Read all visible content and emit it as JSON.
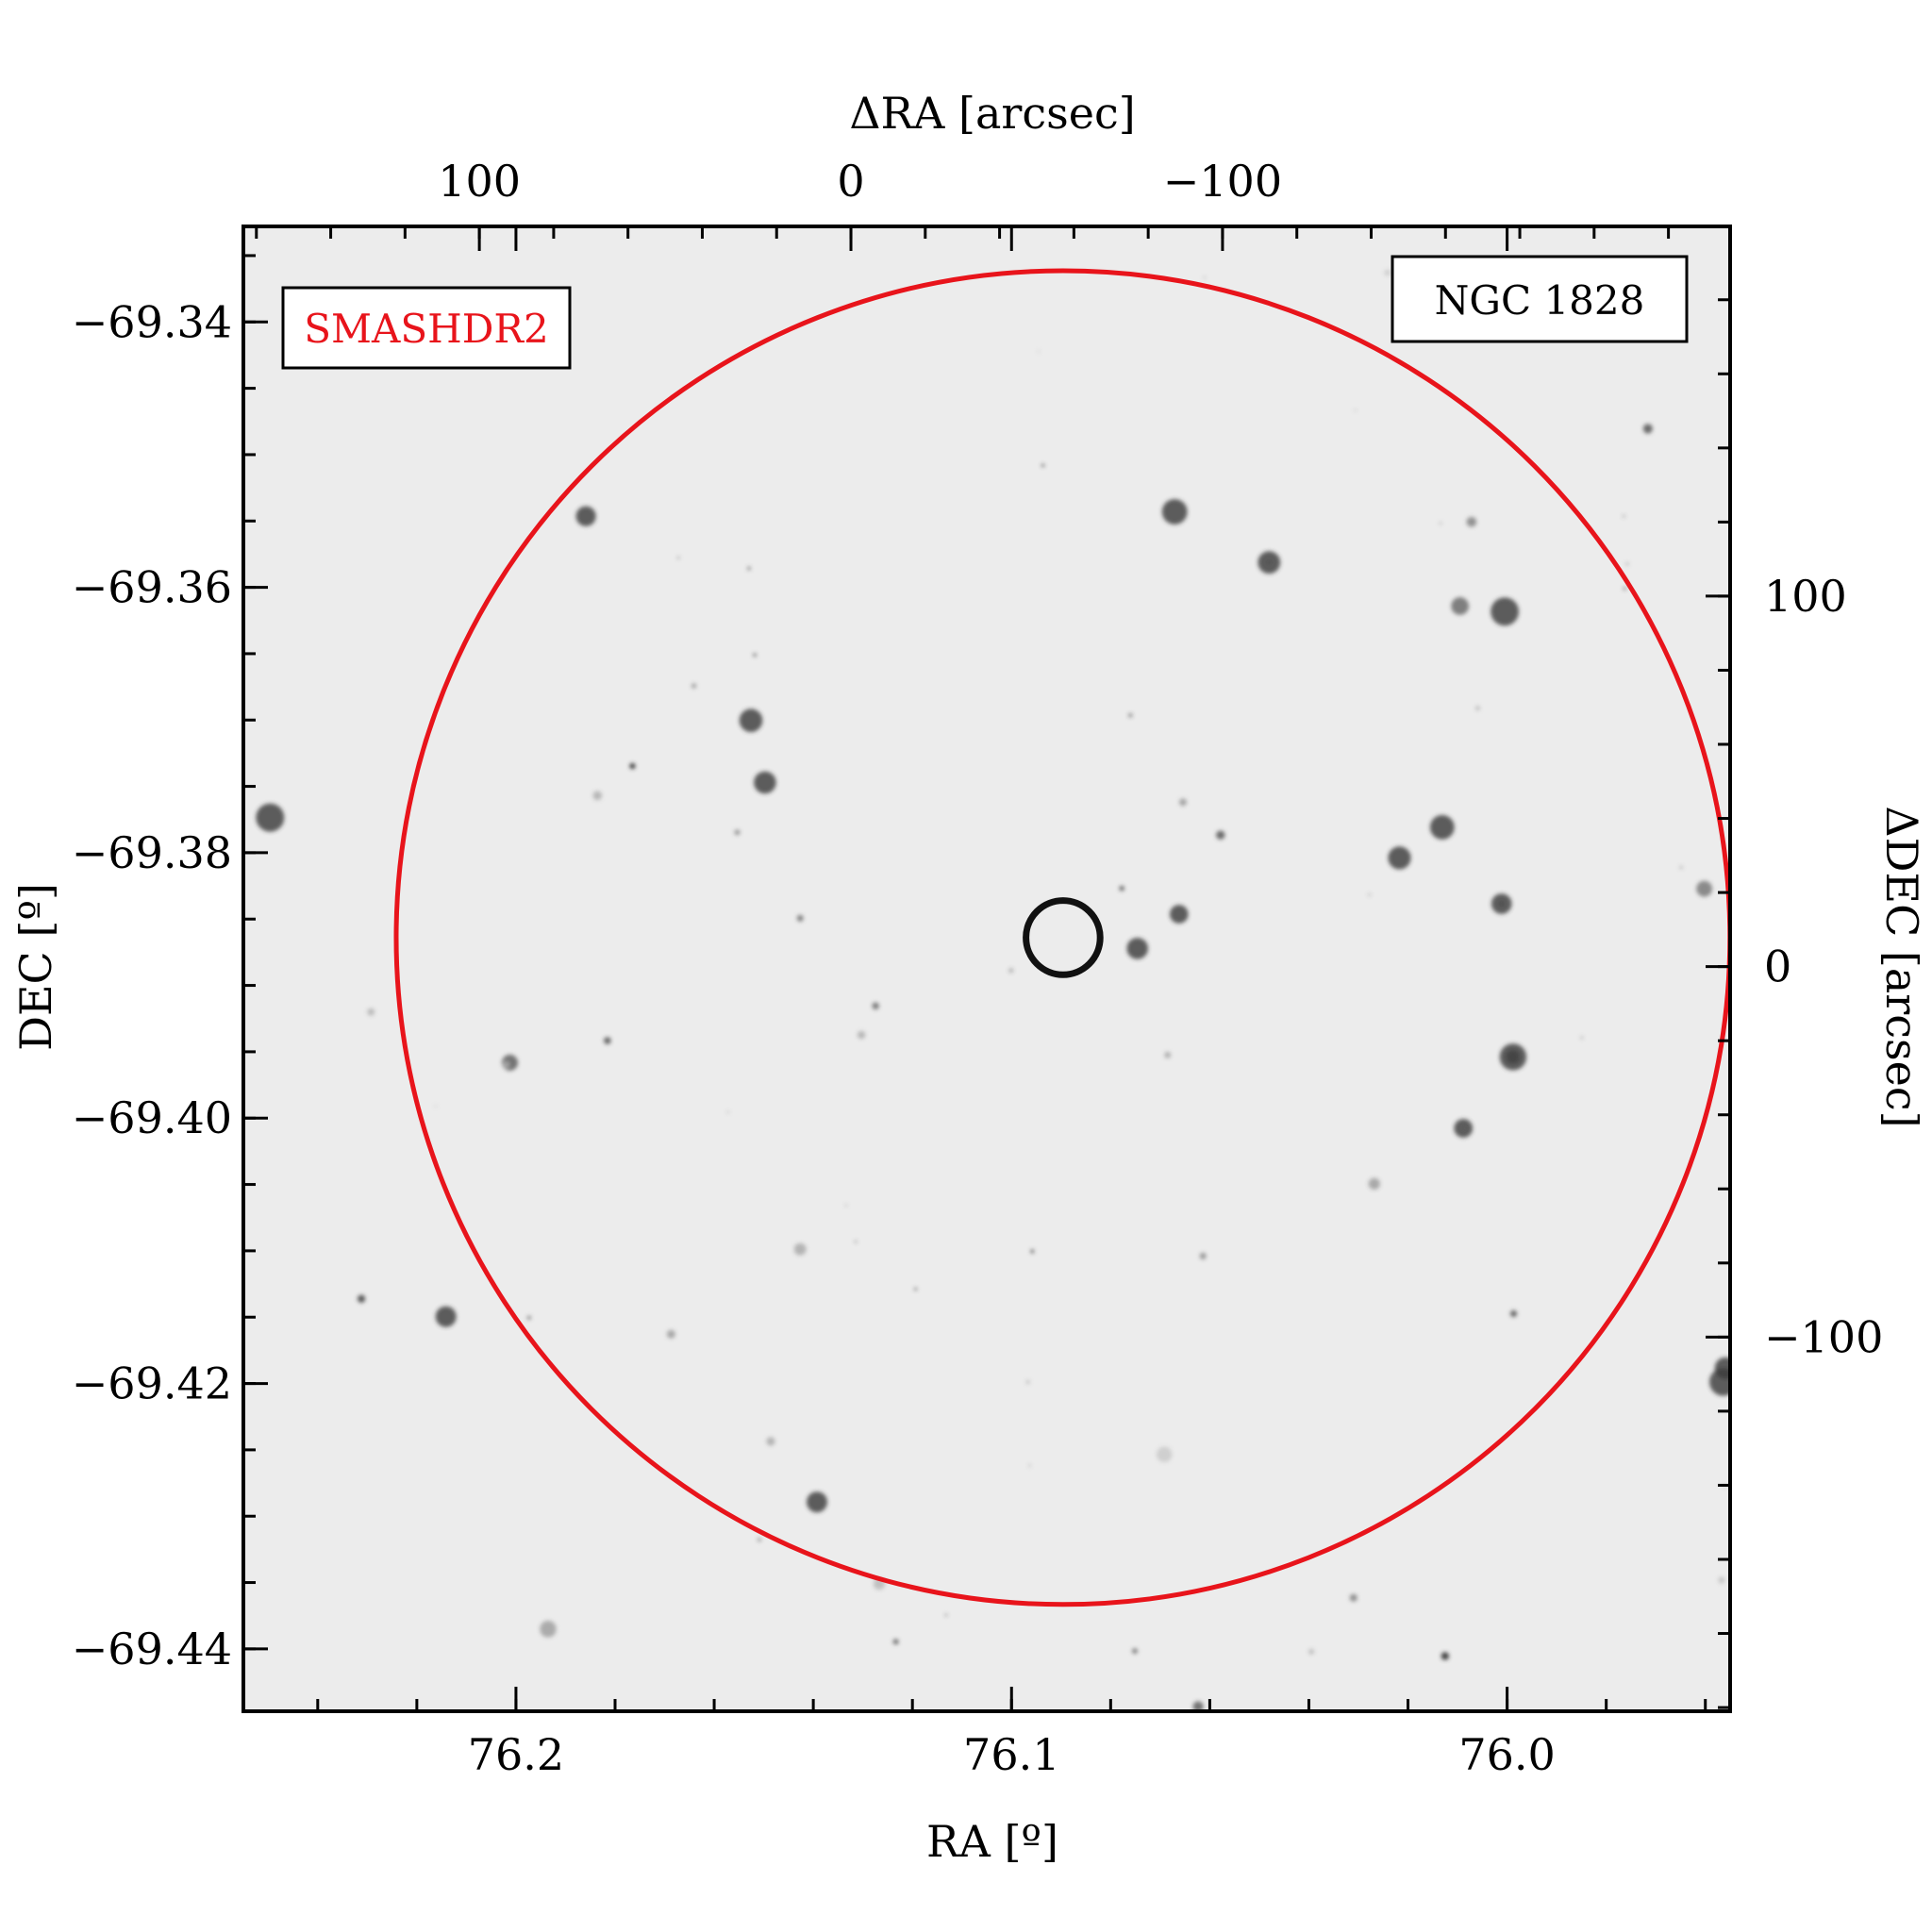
{
  "chart_data": {
    "type": "scatter",
    "image": "sky-field-grayscale",
    "ra_range": [
      76.255,
      75.955
    ],
    "dec_range": [
      -69.4447,
      -69.3328
    ],
    "offset_ra_range": [
      163.5,
      -236.6
    ],
    "offset_dec_range": [
      199.8,
      -201.0
    ],
    "xlabel": "RA [º]",
    "ylabel": "DEC [º]",
    "top_xlabel": "ΔRA [arcsec]",
    "right_ylabel": "ΔDEC [arcsec]",
    "x_ticks": [
      {
        "value": 76.2,
        "label": "76.2"
      },
      {
        "value": 76.1,
        "label": "76.1"
      },
      {
        "value": 76.0,
        "label": "76.0"
      }
    ],
    "y_ticks": [
      {
        "value": -69.34,
        "label": "−69.34"
      },
      {
        "value": -69.36,
        "label": "−69.36"
      },
      {
        "value": -69.38,
        "label": "−69.38"
      },
      {
        "value": -69.4,
        "label": "−69.40"
      },
      {
        "value": -69.42,
        "label": "−69.42"
      },
      {
        "value": -69.44,
        "label": "−69.44"
      }
    ],
    "top_ticks": [
      {
        "value": 100,
        "label": "100"
      },
      {
        "value": 0,
        "label": "0"
      },
      {
        "value": -100,
        "label": "−100"
      }
    ],
    "right_ticks": [
      {
        "value": 100,
        "label": "100"
      },
      {
        "value": 0,
        "label": "0"
      },
      {
        "value": -100,
        "label": "−100"
      }
    ],
    "center": {
      "ra": 76.0896,
      "dec": -69.3864
    },
    "circles": [
      {
        "name": "outer-circle",
        "radius_arcsec": 180,
        "color": "#e8141b"
      },
      {
        "name": "inner-circle",
        "radius_arcsec": 10,
        "color": "#111111"
      }
    ],
    "label_left": {
      "text": "SMASHDR2",
      "color": "#e8141b"
    },
    "label_right": {
      "text": "NGC 1828",
      "color": "#000000"
    }
  }
}
